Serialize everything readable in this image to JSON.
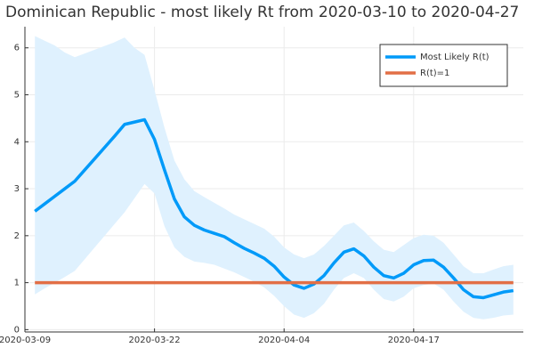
{
  "chart_data": {
    "type": "line",
    "title": "Dominican Republic - most likely Rt from 2020-03-10 to 2020-04-27",
    "x": [
      "2020-03-10",
      "2020-03-11",
      "2020-03-12",
      "2020-03-13",
      "2020-03-14",
      "2020-03-15",
      "2020-03-16",
      "2020-03-17",
      "2020-03-18",
      "2020-03-19",
      "2020-03-20",
      "2020-03-21",
      "2020-03-22",
      "2020-03-23",
      "2020-03-24",
      "2020-03-25",
      "2020-03-26",
      "2020-03-27",
      "2020-03-28",
      "2020-03-29",
      "2020-03-30",
      "2020-03-31",
      "2020-04-01",
      "2020-04-02",
      "2020-04-03",
      "2020-04-04",
      "2020-04-05",
      "2020-04-06",
      "2020-04-07",
      "2020-04-08",
      "2020-04-09",
      "2020-04-10",
      "2020-04-11",
      "2020-04-12",
      "2020-04-13",
      "2020-04-14",
      "2020-04-15",
      "2020-04-16",
      "2020-04-17",
      "2020-04-18",
      "2020-04-19",
      "2020-04-20",
      "2020-04-21",
      "2020-04-22",
      "2020-04-23",
      "2020-04-24",
      "2020-04-25",
      "2020-04-26",
      "2020-04-27"
    ],
    "series": [
      {
        "name": "Most Likely R(t)",
        "color": "#009af9",
        "band_color": "#dff1fe",
        "values": [
          2.52,
          2.68,
          2.84,
          3.0,
          3.16,
          3.4,
          3.64,
          3.88,
          4.12,
          4.37,
          4.42,
          4.47,
          4.05,
          3.4,
          2.78,
          2.4,
          2.22,
          2.12,
          2.05,
          1.98,
          1.85,
          1.73,
          1.63,
          1.52,
          1.35,
          1.12,
          0.95,
          0.88,
          0.97,
          1.15,
          1.42,
          1.65,
          1.72,
          1.57,
          1.33,
          1.15,
          1.1,
          1.2,
          1.38,
          1.47,
          1.48,
          1.33,
          1.1,
          0.85,
          0.7,
          0.68,
          0.74,
          0.8,
          0.83
        ],
        "lower": [
          0.75,
          0.88,
          1.0,
          1.12,
          1.25,
          1.5,
          1.75,
          2.0,
          2.25,
          2.5,
          2.8,
          3.1,
          2.9,
          2.2,
          1.75,
          1.55,
          1.45,
          1.42,
          1.38,
          1.3,
          1.22,
          1.12,
          1.02,
          0.9,
          0.72,
          0.5,
          0.32,
          0.25,
          0.35,
          0.55,
          0.85,
          1.1,
          1.2,
          1.1,
          0.85,
          0.65,
          0.6,
          0.7,
          0.88,
          0.95,
          0.98,
          0.85,
          0.6,
          0.38,
          0.25,
          0.22,
          0.25,
          0.3,
          0.32
        ],
        "upper": [
          6.25,
          6.15,
          6.05,
          5.9,
          5.8,
          5.88,
          5.96,
          6.04,
          6.12,
          6.22,
          6.0,
          5.85,
          5.1,
          4.3,
          3.6,
          3.2,
          2.95,
          2.82,
          2.7,
          2.58,
          2.45,
          2.35,
          2.25,
          2.15,
          1.98,
          1.75,
          1.6,
          1.52,
          1.6,
          1.78,
          2.0,
          2.22,
          2.28,
          2.1,
          1.88,
          1.7,
          1.65,
          1.8,
          1.95,
          2.02,
          2.0,
          1.85,
          1.6,
          1.35,
          1.2,
          1.2,
          1.28,
          1.35,
          1.38
        ]
      },
      {
        "name": "R(t)=1",
        "color": "#e26f46",
        "x": [
          "2020-03-10",
          "2020-04-27"
        ],
        "values": [
          1,
          1
        ]
      }
    ],
    "xlim": [
      "2020-03-09",
      "2020-04-28"
    ],
    "xticks": [
      "2020-03-09",
      "2020-03-22",
      "2020-04-04",
      "2020-04-17"
    ],
    "ylim": [
      -0.05,
      6.45
    ],
    "yticks": [
      0,
      1,
      2,
      3,
      4,
      5,
      6
    ],
    "grid": true,
    "legend": "top-right"
  }
}
